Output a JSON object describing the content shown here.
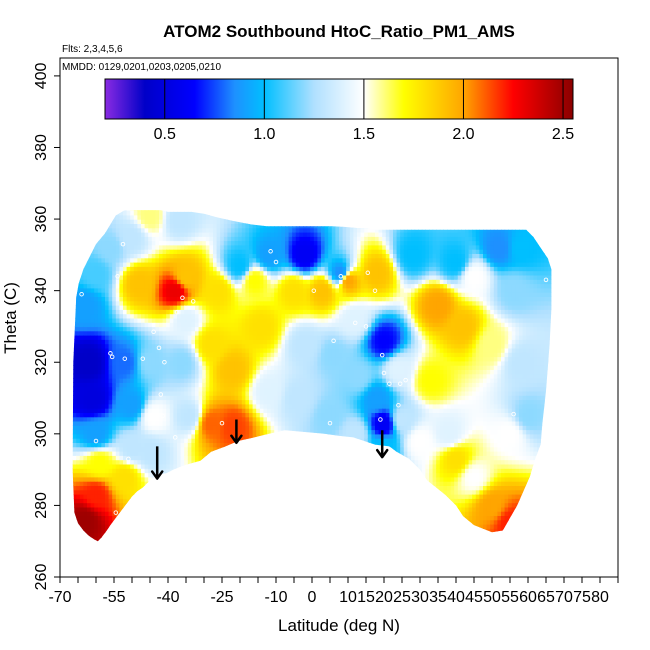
{
  "chart_data": {
    "type": "heatmap",
    "title": "ATOM2 Southbound HtoC_Ratio_PM1_AMS",
    "flights_note": "Flts: 2,3,4,5,6",
    "dates_note": "MMDD: 0129,0201,0203,0205,0210",
    "xlabel": "Latitude (deg N)",
    "ylabel": "Theta (C)",
    "xlim": [
      -70,
      85
    ],
    "ylim": [
      260,
      405
    ],
    "x_ticks": [
      -70,
      -65,
      -60,
      -55,
      -50,
      -45,
      -40,
      -35,
      -30,
      -25,
      -20,
      -15,
      -10,
      -5,
      0,
      5,
      10,
      15,
      20,
      25,
      30,
      35,
      40,
      45,
      50,
      55,
      60,
      65,
      70,
      75,
      80,
      85
    ],
    "x_tick_labels": [
      "-70",
      "",
      "",
      "-55",
      "",
      "",
      "-40",
      "",
      "",
      "-25",
      "",
      "",
      "-10",
      "",
      "0",
      "",
      "10",
      "15",
      "20",
      "25",
      "30",
      "35",
      "40",
      "45",
      "50",
      "55",
      "60",
      "65",
      "70",
      "75",
      "80",
      ""
    ],
    "y_ticks": [
      260,
      280,
      300,
      320,
      340,
      360,
      380,
      400
    ],
    "y_tick_labels": [
      "260",
      "280",
      "300",
      "320",
      "340",
      "360",
      "380",
      "400"
    ],
    "colorbar": {
      "range": [
        0.2,
        2.55
      ],
      "ticks": [
        0.5,
        1.0,
        1.5,
        2.0,
        2.5
      ],
      "tick_labels": [
        "0.5",
        "1.0",
        "1.5",
        "2.0",
        "2.5"
      ],
      "stops": [
        {
          "value": 0.2,
          "color": "#8a2be2"
        },
        {
          "value": 0.4,
          "color": "#0000c8"
        },
        {
          "value": 0.65,
          "color": "#0000ff"
        },
        {
          "value": 0.85,
          "color": "#1e90ff"
        },
        {
          "value": 1.0,
          "color": "#00bfff"
        },
        {
          "value": 1.25,
          "color": "#b0e0ff"
        },
        {
          "value": 1.5,
          "color": "#ffffff"
        },
        {
          "value": 1.7,
          "color": "#ffff00"
        },
        {
          "value": 2.0,
          "color": "#ffa500"
        },
        {
          "value": 2.25,
          "color": "#ff0000"
        },
        {
          "value": 2.55,
          "color": "#8b0000"
        }
      ]
    },
    "field_envelope": {
      "latitude": [
        -65.5,
        -64.8,
        -63.5,
        -61.5,
        -60.0,
        -57.5,
        -56.3,
        -54.5,
        -52.0,
        -48.5,
        -45.5,
        -42.0,
        -40.0,
        -37.5,
        -33.5,
        -30.0,
        -26.5,
        -22.0,
        -17.0,
        -12.5,
        -8.5,
        -5.0,
        -1.5,
        2.0,
        5.5,
        9.0,
        12.5,
        15.5,
        17.0,
        20.5,
        25.0,
        30.0,
        35.0,
        38.0,
        42.0,
        47.0,
        51.5,
        56.0,
        59.5,
        61.5,
        63.5,
        65.5,
        66.5,
        66.5,
        66.0,
        65.0,
        64.0,
        63.5,
        62.0,
        60.5,
        57.0,
        53.0,
        50.0,
        45.0,
        42.0,
        40.0,
        37.0,
        32.0,
        30.0,
        27.0,
        23.5,
        21.5,
        17.5,
        14.5,
        11.5,
        7.0,
        3.5,
        -2.0,
        -7.5,
        -12.0,
        -16.0,
        -20.5,
        -24.0,
        -28.0,
        -31.0,
        -34.5,
        -36.0,
        -38.5,
        -40.5,
        -43.0,
        -45.0,
        -47.0,
        -48.5,
        -50.0,
        -51.5,
        -53.0,
        -54.5,
        -56.0,
        -57.0,
        -58.5,
        -59.5,
        -60.5,
        -62.0,
        -63.5,
        -65.0,
        -66.0,
        -66.5,
        -66.3
      ],
      "theta": [
        338.0,
        342.0,
        346.0,
        350.0,
        353.0,
        356.0,
        358.0,
        361.0,
        362.5,
        362.5,
        362.5,
        362.5,
        362.0,
        362.0,
        362.0,
        361.5,
        360.5,
        359.5,
        358.5,
        358.0,
        358.0,
        358.0,
        358.0,
        358.0,
        358.0,
        357.8,
        357.5,
        357.5,
        357.0,
        357.0,
        357.0,
        357.0,
        357.0,
        357.0,
        357.0,
        357.0,
        357.0,
        357.0,
        357.0,
        355.0,
        352.0,
        349.0,
        346.0,
        335.0,
        325.0,
        312.0,
        303.0,
        297.0,
        293.0,
        288.0,
        280.0,
        273.0,
        272.5,
        274.5,
        277.0,
        280.0,
        283.0,
        287.0,
        290.0,
        293.0,
        295.0,
        296.5,
        297.0,
        298.0,
        299.0,
        299.5,
        300.0,
        300.5,
        301.0,
        300.0,
        299.0,
        298.0,
        296.5,
        295.0,
        292.5,
        291.5,
        291.0,
        290.0,
        289.0,
        288.5,
        287.0,
        285.0,
        284.0,
        282.5,
        280.5,
        278.5,
        276.5,
        274.5,
        273.0,
        271.0,
        270.0,
        270.5,
        271.5,
        273.0,
        275.0,
        278.0,
        290.0,
        320.0
      ]
    },
    "field_seeds": [
      {
        "lat": -62,
        "theta": 320,
        "value": 0.4
      },
      {
        "lat": -61,
        "theta": 310,
        "value": 0.5
      },
      {
        "lat": -60,
        "theta": 300,
        "value": 0.9
      },
      {
        "lat": -59,
        "theta": 292,
        "value": 1.7
      },
      {
        "lat": -60,
        "theta": 283,
        "value": 2.2
      },
      {
        "lat": -63,
        "theta": 276,
        "value": 2.5
      },
      {
        "lat": -63,
        "theta": 336,
        "value": 0.9
      },
      {
        "lat": -60,
        "theta": 345,
        "value": 1.1
      },
      {
        "lat": -56,
        "theta": 352,
        "value": 1.2
      },
      {
        "lat": -50,
        "theta": 355,
        "value": 1.3
      },
      {
        "lat": -45,
        "theta": 361,
        "value": 1.6
      },
      {
        "lat": -37,
        "theta": 360,
        "value": 1.3
      },
      {
        "lat": -52,
        "theta": 320,
        "value": 0.8
      },
      {
        "lat": -50,
        "theta": 308,
        "value": 0.9
      },
      {
        "lat": -50,
        "theta": 296,
        "value": 1.3
      },
      {
        "lat": -52,
        "theta": 288,
        "value": 1.8
      },
      {
        "lat": -45,
        "theta": 320,
        "value": 1.2
      },
      {
        "lat": -44,
        "theta": 305,
        "value": 1.5
      },
      {
        "lat": -45,
        "theta": 295,
        "value": 1.3
      },
      {
        "lat": -48,
        "theta": 342,
        "value": 1.9
      },
      {
        "lat": -38,
        "theta": 340,
        "value": 2.3
      },
      {
        "lat": -35,
        "theta": 344,
        "value": 1.9
      },
      {
        "lat": -35,
        "theta": 332,
        "value": 1.4
      },
      {
        "lat": -36,
        "theta": 320,
        "value": 1.2
      },
      {
        "lat": -34,
        "theta": 305,
        "value": 1.3
      },
      {
        "lat": -28,
        "theta": 303,
        "value": 2.1
      },
      {
        "lat": -22,
        "theta": 302,
        "value": 2.15
      },
      {
        "lat": -28,
        "theta": 325,
        "value": 1.8
      },
      {
        "lat": -22,
        "theta": 318,
        "value": 1.9
      },
      {
        "lat": -26,
        "theta": 340,
        "value": 1.8
      },
      {
        "lat": -20,
        "theta": 347,
        "value": 1.0
      },
      {
        "lat": -16,
        "theta": 343,
        "value": 1.7
      },
      {
        "lat": -14,
        "theta": 330,
        "value": 1.8
      },
      {
        "lat": -12,
        "theta": 312,
        "value": 1.4
      },
      {
        "lat": -12,
        "theta": 350,
        "value": 0.9
      },
      {
        "lat": -2,
        "theta": 350,
        "value": 0.6
      },
      {
        "lat": 8,
        "theta": 345,
        "value": 0.85
      },
      {
        "lat": -5,
        "theta": 340,
        "value": 1.8
      },
      {
        "lat": 3,
        "theta": 340,
        "value": 1.9
      },
      {
        "lat": -2,
        "theta": 325,
        "value": 1.3
      },
      {
        "lat": 6,
        "theta": 322,
        "value": 1.2
      },
      {
        "lat": -4,
        "theta": 310,
        "value": 1.3
      },
      {
        "lat": 5,
        "theta": 305,
        "value": 1.2
      },
      {
        "lat": 12,
        "theta": 332,
        "value": 1.4
      },
      {
        "lat": 13,
        "theta": 316,
        "value": 1.2
      },
      {
        "lat": 12,
        "theta": 300,
        "value": 1.3
      },
      {
        "lat": 10,
        "theta": 343,
        "value": 2.0
      },
      {
        "lat": 18,
        "theta": 345,
        "value": 1.9
      },
      {
        "lat": 20,
        "theta": 326,
        "value": 0.65
      },
      {
        "lat": 18,
        "theta": 310,
        "value": 0.9
      },
      {
        "lat": 20,
        "theta": 303,
        "value": 0.6
      },
      {
        "lat": 20,
        "theta": 296,
        "value": 1.0
      },
      {
        "lat": 24,
        "theta": 318,
        "value": 1.4
      },
      {
        "lat": 25,
        "theta": 304,
        "value": 1.3
      },
      {
        "lat": 35,
        "theta": 336,
        "value": 2.0
      },
      {
        "lat": 42,
        "theta": 330,
        "value": 1.9
      },
      {
        "lat": 33,
        "theta": 315,
        "value": 1.7
      },
      {
        "lat": 38,
        "theta": 300,
        "value": 1.4
      },
      {
        "lat": 50,
        "theta": 325,
        "value": 1.6
      },
      {
        "lat": 56,
        "theta": 340,
        "value": 1.2
      },
      {
        "lat": 45,
        "theta": 344,
        "value": 1.5
      },
      {
        "lat": 40,
        "theta": 348,
        "value": 1.0
      },
      {
        "lat": 52,
        "theta": 352,
        "value": 0.85
      },
      {
        "lat": 58,
        "theta": 352,
        "value": 1.0
      },
      {
        "lat": 28,
        "theta": 350,
        "value": 1.0
      },
      {
        "lat": 58,
        "theta": 320,
        "value": 1.3
      },
      {
        "lat": 60,
        "theta": 305,
        "value": 1.2
      },
      {
        "lat": 55,
        "theta": 300,
        "value": 1.5
      },
      {
        "lat": 45,
        "theta": 288,
        "value": 1.5
      },
      {
        "lat": 50,
        "theta": 280,
        "value": 2.0
      },
      {
        "lat": 55,
        "theta": 275,
        "value": 2.2
      },
      {
        "lat": 40,
        "theta": 293,
        "value": 1.8
      },
      {
        "lat": 30,
        "theta": 298,
        "value": 1.5
      }
    ],
    "sample_points": [
      {
        "lat": -56.0,
        "theta": 322.5
      },
      {
        "lat": -55.5,
        "theta": 321.5
      },
      {
        "lat": -44.0,
        "theta": 328.5
      },
      {
        "lat": -42.5,
        "theta": 324.0
      },
      {
        "lat": -41.0,
        "theta": 320.0
      },
      {
        "lat": -41.5,
        "theta": 305.0
      },
      {
        "lat": -47.0,
        "theta": 321.0
      },
      {
        "lat": -52.0,
        "theta": 321.0
      },
      {
        "lat": -51.0,
        "theta": 293.0
      },
      {
        "lat": -42.0,
        "theta": 311.0
      },
      {
        "lat": -38.0,
        "theta": 299.0
      },
      {
        "lat": -54.5,
        "theta": 278.0
      },
      {
        "lat": -60.0,
        "theta": 298.0
      },
      {
        "lat": -36.0,
        "theta": 338.0
      },
      {
        "lat": -33.0,
        "theta": 337.0
      },
      {
        "lat": -37.5,
        "theta": 334.0
      },
      {
        "lat": -52.5,
        "theta": 353.0
      },
      {
        "lat": -54.0,
        "theta": 344.0
      },
      {
        "lat": -64.0,
        "theta": 339.0
      },
      {
        "lat": -25.0,
        "theta": 303.0
      },
      {
        "lat": -10.0,
        "theta": 348.0
      },
      {
        "lat": -11.5,
        "theta": 351.0
      },
      {
        "lat": 8.0,
        "theta": 344.0
      },
      {
        "lat": 15.5,
        "theta": 345.0
      },
      {
        "lat": 17.5,
        "theta": 340.0
      },
      {
        "lat": 12.0,
        "theta": 331.0
      },
      {
        "lat": 15.0,
        "theta": 330.0
      },
      {
        "lat": 19.5,
        "theta": 322.0
      },
      {
        "lat": 20.0,
        "theta": 317.0
      },
      {
        "lat": 21.5,
        "theta": 314.0
      },
      {
        "lat": 24.5,
        "theta": 314.0
      },
      {
        "lat": 26.0,
        "theta": 315.0
      },
      {
        "lat": 19.0,
        "theta": 304.0
      },
      {
        "lat": 24.0,
        "theta": 308.0
      },
      {
        "lat": 5.0,
        "theta": 303.0
      },
      {
        "lat": 6.0,
        "theta": 326.0
      },
      {
        "lat": 0.5,
        "theta": 340.0
      },
      {
        "lat": 56.0,
        "theta": 305.5
      },
      {
        "lat": 54.0,
        "theta": 272.0
      },
      {
        "lat": 66.0,
        "theta": 356.0
      },
      {
        "lat": 65.0,
        "theta": 343.0
      }
    ],
    "arrows": [
      {
        "lat": -43.0,
        "theta_top": 296.5,
        "theta_tip": 287.5
      },
      {
        "lat": -21.0,
        "theta_top": 304.0,
        "theta_tip": 297.5
      },
      {
        "lat": 19.5,
        "theta_top": 301.0,
        "theta_tip": 293.5
      }
    ]
  }
}
